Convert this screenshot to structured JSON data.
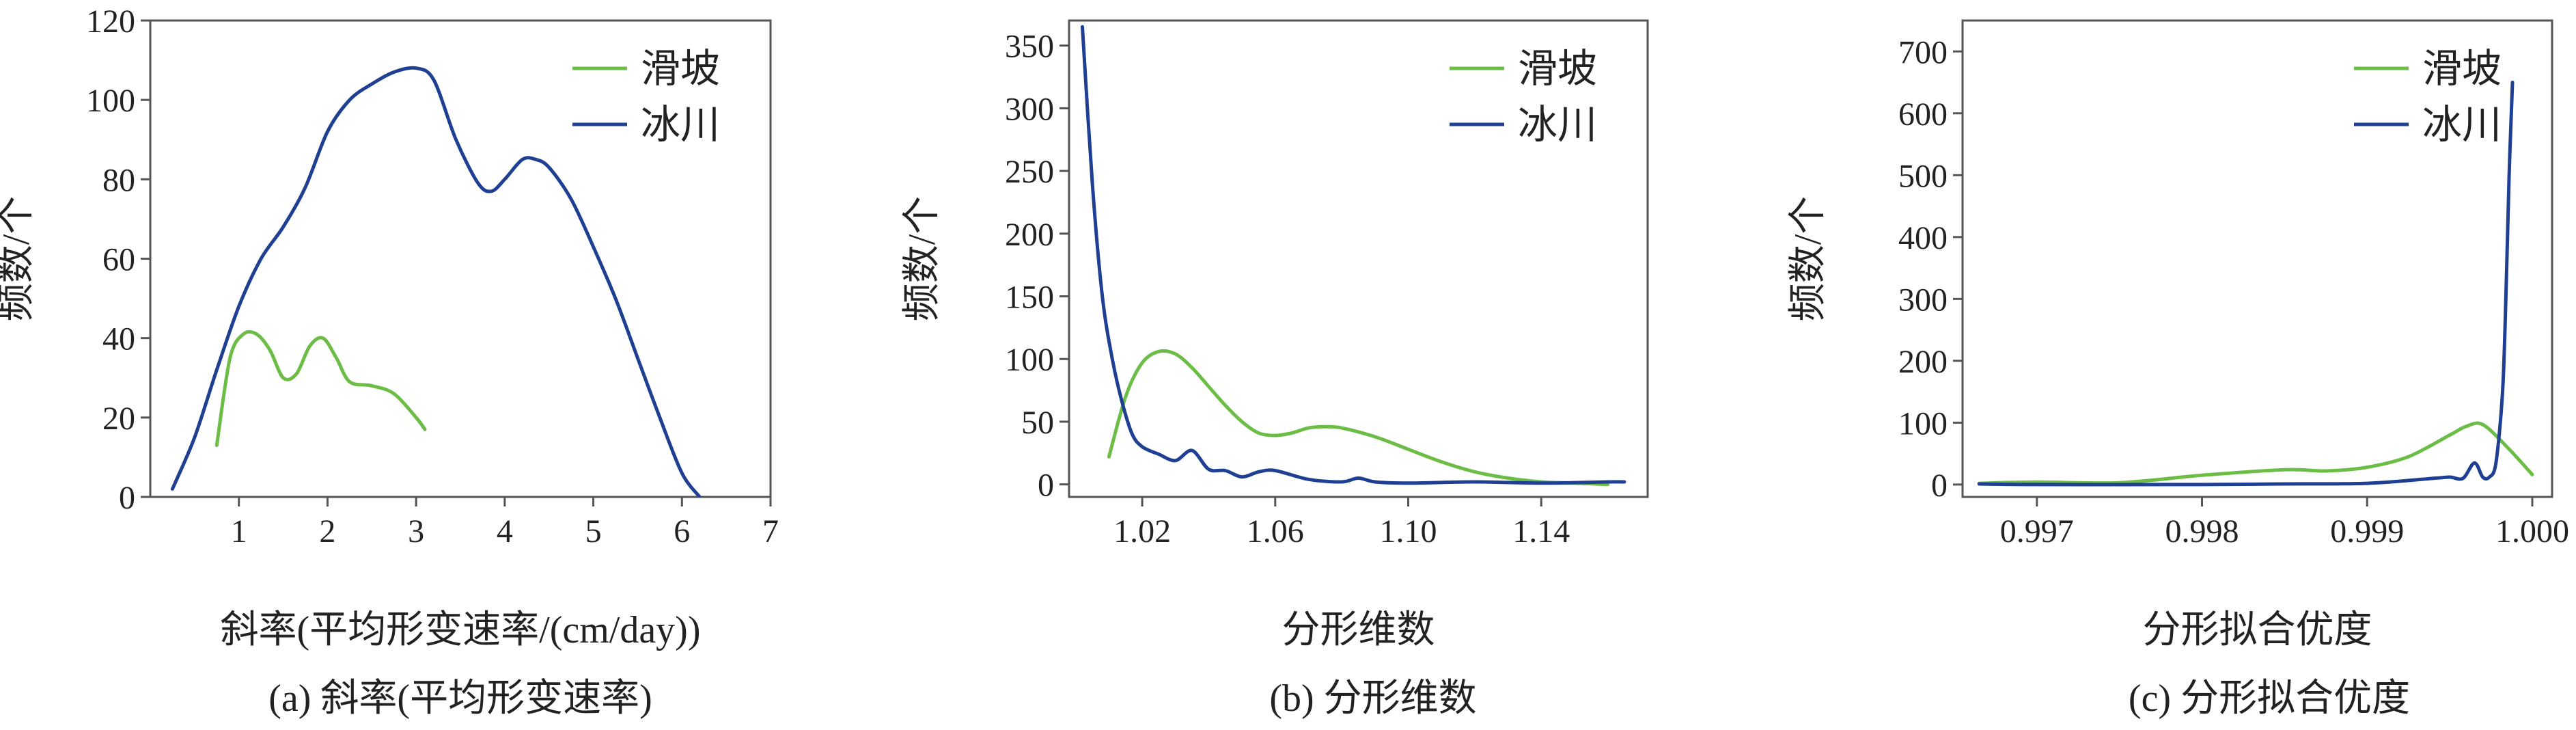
{
  "palette": {
    "green": "#6cbd45",
    "blue": "#1f3f93"
  },
  "chart_data": [
    {
      "id": "a",
      "type": "line",
      "xlabel": "斜率(平均形变速率/(cm/day))",
      "ylabel": "频数/个",
      "caption": "(a) 斜率(平均形变速率)",
      "xlim": [
        0,
        7
      ],
      "ylim": [
        0,
        120
      ],
      "xticks": [
        1,
        2,
        3,
        4,
        5,
        6,
        7
      ],
      "xtick_labels": [
        "1",
        "2",
        "3",
        "4",
        "5",
        "6",
        "7"
      ],
      "yticks": [
        0,
        20,
        40,
        60,
        80,
        100,
        120
      ],
      "ytick_labels": [
        "0",
        "20",
        "40",
        "60",
        "80",
        "100",
        "120"
      ],
      "legend_position": "top-right",
      "series": [
        {
          "name": "滑坡",
          "color": "#6cbd45",
          "x": [
            0.75,
            0.9,
            1.05,
            1.2,
            1.35,
            1.5,
            1.65,
            1.8,
            1.95,
            2.1,
            2.25,
            2.5,
            2.75,
            3.0,
            3.1
          ],
          "y": [
            13,
            35,
            41,
            41,
            37,
            30,
            31,
            38,
            40,
            35,
            29,
            28,
            26,
            20,
            17
          ]
        },
        {
          "name": "冰川",
          "color": "#1f3f93",
          "x": [
            0.25,
            0.5,
            0.75,
            1.0,
            1.25,
            1.5,
            1.75,
            2.0,
            2.25,
            2.5,
            2.75,
            3.0,
            3.2,
            3.45,
            3.7,
            3.85,
            4.0,
            4.2,
            4.35,
            4.5,
            4.75,
            5.0,
            5.25,
            5.5,
            5.75,
            6.0,
            6.2
          ],
          "y": [
            2,
            15,
            32,
            48,
            60,
            68,
            78,
            92,
            100,
            104,
            107,
            108,
            105,
            90,
            79,
            77,
            80,
            85,
            85,
            83,
            75,
            63,
            50,
            35,
            20,
            6,
            0
          ]
        }
      ]
    },
    {
      "id": "b",
      "type": "line",
      "xlabel": "分形维数",
      "ylabel": "频数/个",
      "caption": "(b) 分形维数",
      "xlim": [
        0.998,
        1.172
      ],
      "ylim": [
        -10,
        370
      ],
      "xticks": [
        1.02,
        1.06,
        1.1,
        1.14
      ],
      "xtick_labels": [
        "1.02",
        "1.06",
        "1.10",
        "1.14"
      ],
      "yticks": [
        0,
        50,
        100,
        150,
        200,
        250,
        300,
        350
      ],
      "ytick_labels": [
        "0",
        "50",
        "100",
        "150",
        "200",
        "250",
        "300",
        "350"
      ],
      "legend_position": "top-right",
      "series": [
        {
          "name": "滑坡",
          "color": "#6cbd45",
          "x": [
            1.01,
            1.015,
            1.02,
            1.025,
            1.03,
            1.035,
            1.04,
            1.045,
            1.05,
            1.055,
            1.06,
            1.065,
            1.07,
            1.075,
            1.08,
            1.09,
            1.1,
            1.11,
            1.12,
            1.13,
            1.14,
            1.15,
            1.16
          ],
          "y": [
            22,
            70,
            97,
            106,
            104,
            93,
            78,
            63,
            50,
            41,
            39,
            41,
            45,
            46,
            45,
            38,
            28,
            18,
            10,
            5,
            2,
            1,
            0
          ]
        },
        {
          "name": "冰川",
          "color": "#1f3f93",
          "x": [
            1.002,
            1.005,
            1.008,
            1.011,
            1.014,
            1.017,
            1.02,
            1.025,
            1.03,
            1.035,
            1.04,
            1.045,
            1.05,
            1.055,
            1.06,
            1.07,
            1.08,
            1.085,
            1.09,
            1.1,
            1.12,
            1.14,
            1.16,
            1.165
          ],
          "y": [
            365,
            240,
            150,
            100,
            65,
            40,
            30,
            24,
            19,
            27,
            12,
            11,
            6,
            10,
            11,
            4,
            2,
            5,
            2,
            1,
            2,
            1,
            2,
            2
          ]
        }
      ]
    },
    {
      "id": "c",
      "type": "line",
      "xlabel": "分形拟合优度",
      "ylabel": "频数/个",
      "caption": "(c) 分形拟合优度",
      "xlim": [
        0.99655,
        1.00012
      ],
      "ylim": [
        -20,
        750
      ],
      "xticks": [
        0.997,
        0.998,
        0.999,
        1.0
      ],
      "xtick_labels": [
        "0.997",
        "0.998",
        "0.999",
        "1.000"
      ],
      "yticks": [
        0,
        100,
        200,
        300,
        400,
        500,
        600,
        700
      ],
      "ytick_labels": [
        "0",
        "100",
        "200",
        "300",
        "400",
        "500",
        "600",
        "700"
      ],
      "legend_position": "top-right",
      "series": [
        {
          "name": "滑坡",
          "color": "#6cbd45",
          "x": [
            0.99665,
            0.997,
            0.9975,
            0.998,
            0.9985,
            0.99875,
            0.999,
            0.99925,
            0.9995,
            0.9996,
            0.9997,
            0.99985,
            1.0
          ],
          "y": [
            2,
            4,
            3,
            15,
            24,
            22,
            28,
            45,
            80,
            94,
            97,
            60,
            16
          ]
        },
        {
          "name": "冰川",
          "color": "#1f3f93",
          "x": [
            0.99665,
            0.997,
            0.998,
            0.9985,
            0.999,
            0.9994,
            0.9995,
            0.99958,
            0.99965,
            0.9997,
            0.99974,
            0.99978,
            0.99982,
            0.99984,
            0.99986,
            0.99988
          ],
          "y": [
            1,
            0,
            0,
            1,
            2,
            10,
            12,
            10,
            35,
            12,
            12,
            35,
            150,
            300,
            500,
            650
          ]
        }
      ]
    }
  ]
}
